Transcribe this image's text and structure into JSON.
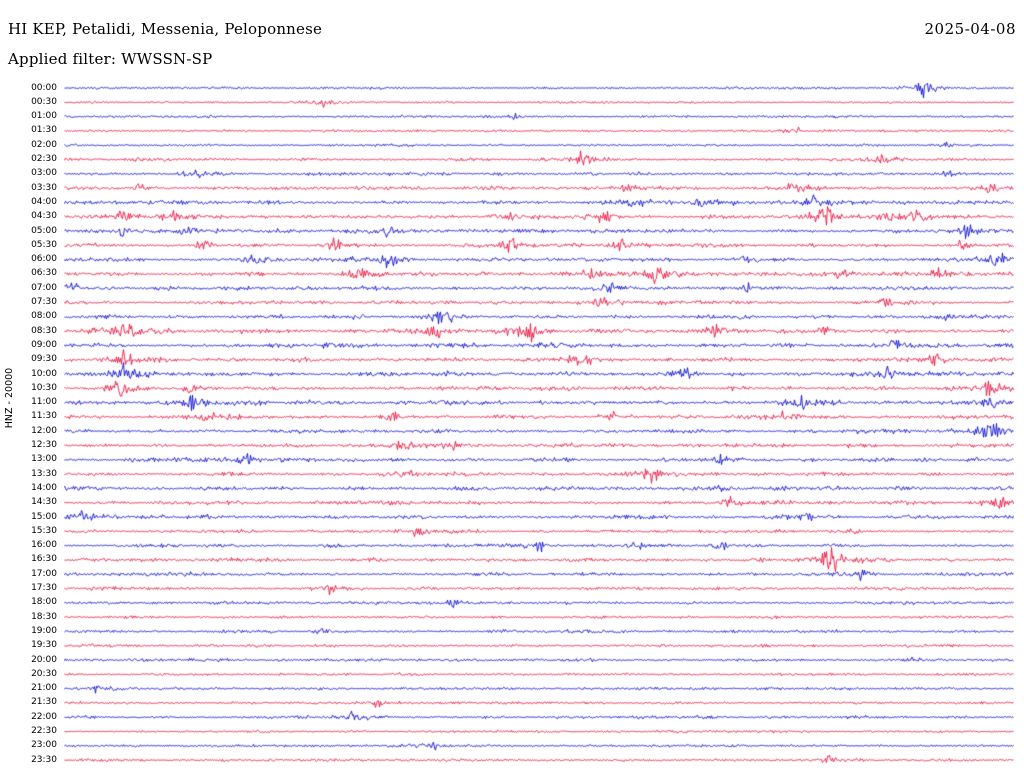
{
  "header": {
    "station_title": "HI KEP, Petalidi, Messenia, Peloponnese",
    "date": "2025-04-08",
    "filter_label": "Applied filter: WWSSN-SP"
  },
  "axis": {
    "left_label": "HNZ - 20000"
  },
  "chart_data": {
    "type": "line",
    "subtype": "helicorder-day-plot",
    "title": "HI KEP, Petalidi, Messenia, Peloponnese",
    "date": "2025-04-08",
    "filter": "WWSSN-SP",
    "channel_scale": "HNZ - 20000",
    "row_interval_minutes": 30,
    "legend": "rows alternate blue/red every 30 minutes",
    "colors": {
      "blue": "#0b0bd2",
      "red": "#e8123e"
    },
    "rows": [
      {
        "time": "00:00",
        "color": "blue",
        "act": 0.25,
        "ev": [
          [
            0.905,
            9
          ]
        ]
      },
      {
        "time": "00:30",
        "color": "red",
        "act": 0.22,
        "ev": [
          [
            0.275,
            5
          ]
        ]
      },
      {
        "time": "01:00",
        "color": "blue",
        "act": 0.22,
        "ev": [
          [
            0.475,
            3
          ]
        ]
      },
      {
        "time": "01:30",
        "color": "red",
        "act": 0.25,
        "ev": [
          [
            0.77,
            3
          ]
        ]
      },
      {
        "time": "02:00",
        "color": "blue",
        "act": 0.28,
        "ev": [
          [
            0.93,
            3
          ]
        ]
      },
      {
        "time": "02:30",
        "color": "red",
        "act": 0.4,
        "ev": [
          [
            0.545,
            7
          ],
          [
            0.86,
            6
          ]
        ]
      },
      {
        "time": "03:00",
        "color": "blue",
        "act": 0.45,
        "ev": [
          [
            0.135,
            6
          ],
          [
            0.93,
            4
          ]
        ]
      },
      {
        "time": "03:30",
        "color": "red",
        "act": 0.5,
        "ev": [
          [
            0.08,
            5
          ],
          [
            0.59,
            6
          ],
          [
            0.77,
            6
          ],
          [
            0.975,
            4
          ]
        ]
      },
      {
        "time": "04:00",
        "color": "blue",
        "act": 0.55,
        "ev": [
          [
            0.6,
            6
          ],
          [
            0.67,
            5
          ],
          [
            0.79,
            7
          ]
        ]
      },
      {
        "time": "04:30",
        "color": "red",
        "act": 0.65,
        "ev": [
          [
            0.06,
            5
          ],
          [
            0.12,
            6
          ],
          [
            0.47,
            5
          ],
          [
            0.57,
            7
          ],
          [
            0.8,
            10
          ],
          [
            0.87,
            7
          ],
          [
            0.9,
            6
          ]
        ]
      },
      {
        "time": "05:00",
        "color": "blue",
        "act": 0.6,
        "ev": [
          [
            0.06,
            5
          ],
          [
            0.13,
            5
          ],
          [
            0.34,
            6
          ],
          [
            0.95,
            5
          ]
        ]
      },
      {
        "time": "05:30",
        "color": "red",
        "act": 0.6,
        "ev": [
          [
            0.145,
            5
          ],
          [
            0.285,
            6
          ],
          [
            0.47,
            8
          ],
          [
            0.585,
            5
          ],
          [
            0.945,
            5
          ]
        ]
      },
      {
        "time": "06:00",
        "color": "blue",
        "act": 0.65,
        "ev": [
          [
            0.2,
            6
          ],
          [
            0.34,
            7
          ],
          [
            0.72,
            6
          ],
          [
            0.985,
            7
          ]
        ]
      },
      {
        "time": "06:30",
        "color": "red",
        "act": 0.6,
        "ev": [
          [
            0.31,
            7
          ],
          [
            0.555,
            5
          ],
          [
            0.625,
            8
          ],
          [
            0.815,
            6
          ],
          [
            0.92,
            5
          ]
        ]
      },
      {
        "time": "07:00",
        "color": "blue",
        "act": 0.55,
        "ev": [
          [
            0.01,
            6
          ],
          [
            0.575,
            6
          ],
          [
            0.72,
            5
          ]
        ]
      },
      {
        "time": "07:30",
        "color": "red",
        "act": 0.5,
        "ev": [
          [
            0.565,
            5
          ],
          [
            0.865,
            5
          ]
        ]
      },
      {
        "time": "08:00",
        "color": "blue",
        "act": 0.55,
        "ev": [
          [
            0.395,
            9
          ],
          [
            0.93,
            5
          ]
        ]
      },
      {
        "time": "08:30",
        "color": "red",
        "act": 0.65,
        "ev": [
          [
            0.065,
            10
          ],
          [
            0.39,
            7
          ],
          [
            0.485,
            10
          ],
          [
            0.685,
            7
          ],
          [
            0.8,
            6
          ]
        ]
      },
      {
        "time": "09:00",
        "color": "blue",
        "act": 0.75,
        "ev": [
          [
            0.875,
            6
          ]
        ]
      },
      {
        "time": "09:30",
        "color": "red",
        "act": 0.6,
        "ev": [
          [
            0.065,
            8
          ],
          [
            0.545,
            6
          ],
          [
            0.915,
            6
          ]
        ]
      },
      {
        "time": "10:00",
        "color": "blue",
        "act": 0.65,
        "ev": [
          [
            0.065,
            9
          ],
          [
            0.41,
            6
          ],
          [
            0.65,
            6
          ],
          [
            0.865,
            7
          ]
        ]
      },
      {
        "time": "10:30",
        "color": "red",
        "act": 0.6,
        "ev": [
          [
            0.06,
            9
          ],
          [
            0.135,
            6
          ],
          [
            0.975,
            9
          ]
        ]
      },
      {
        "time": "11:00",
        "color": "blue",
        "act": 0.72,
        "ev": [
          [
            0.135,
            7
          ],
          [
            0.775,
            6
          ],
          [
            0.975,
            6
          ]
        ]
      },
      {
        "time": "11:30",
        "color": "red",
        "act": 0.6,
        "ev": [
          [
            0.155,
            6
          ],
          [
            0.345,
            5
          ],
          [
            0.575,
            5
          ],
          [
            0.76,
            6
          ]
        ]
      },
      {
        "time": "12:00",
        "color": "blue",
        "act": 0.6,
        "ev": [
          [
            0.975,
            8
          ]
        ]
      },
      {
        "time": "12:30",
        "color": "red",
        "act": 0.6,
        "ev": [
          [
            0.355,
            8
          ],
          [
            0.41,
            6
          ]
        ]
      },
      {
        "time": "13:00",
        "color": "blue",
        "act": 0.72,
        "ev": [
          [
            0.195,
            6
          ],
          [
            0.69,
            5
          ]
        ]
      },
      {
        "time": "13:30",
        "color": "red",
        "act": 0.6,
        "ev": [
          [
            0.36,
            5
          ],
          [
            0.62,
            8
          ]
        ]
      },
      {
        "time": "14:00",
        "color": "blue",
        "act": 0.65,
        "ev": [
          [
            0.69,
            5
          ]
        ]
      },
      {
        "time": "14:30",
        "color": "red",
        "act": 0.6,
        "ev": [
          [
            0.7,
            5
          ],
          [
            0.985,
            8
          ]
        ]
      },
      {
        "time": "15:00",
        "color": "blue",
        "act": 0.6,
        "ev": [
          [
            0.02,
            8
          ],
          [
            0.78,
            6
          ]
        ]
      },
      {
        "time": "15:30",
        "color": "red",
        "act": 0.5,
        "ev": [
          [
            0.37,
            6
          ]
        ]
      },
      {
        "time": "16:00",
        "color": "blue",
        "act": 0.5,
        "ev": [
          [
            0.5,
            5
          ],
          [
            0.6,
            5
          ],
          [
            0.69,
            5
          ]
        ]
      },
      {
        "time": "16:30",
        "color": "red",
        "act": 0.55,
        "ev": [
          [
            0.805,
            12
          ]
        ]
      },
      {
        "time": "17:00",
        "color": "blue",
        "act": 0.5,
        "ev": [
          [
            0.84,
            5
          ]
        ]
      },
      {
        "time": "17:30",
        "color": "red",
        "act": 0.45,
        "ev": [
          [
            0.28,
            5
          ]
        ]
      },
      {
        "time": "18:00",
        "color": "blue",
        "act": 0.4,
        "ev": [
          [
            0.41,
            5
          ]
        ]
      },
      {
        "time": "18:30",
        "color": "red",
        "act": 0.4,
        "ev": []
      },
      {
        "time": "19:00",
        "color": "blue",
        "act": 0.45,
        "ev": [
          [
            0.27,
            4
          ]
        ]
      },
      {
        "time": "19:30",
        "color": "red",
        "act": 0.35,
        "ev": []
      },
      {
        "time": "20:00",
        "color": "blue",
        "act": 0.3,
        "ev": [
          [
            0.895,
            4
          ]
        ]
      },
      {
        "time": "20:30",
        "color": "red",
        "act": 0.3,
        "ev": []
      },
      {
        "time": "21:00",
        "color": "blue",
        "act": 0.3,
        "ev": [
          [
            0.035,
            4
          ]
        ]
      },
      {
        "time": "21:30",
        "color": "red",
        "act": 0.3,
        "ev": [
          [
            0.33,
            4
          ]
        ]
      },
      {
        "time": "22:00",
        "color": "blue",
        "act": 0.4,
        "ev": [
          [
            0.305,
            5
          ]
        ]
      },
      {
        "time": "22:30",
        "color": "red",
        "act": 0.28,
        "ev": []
      },
      {
        "time": "23:00",
        "color": "blue",
        "act": 0.28,
        "ev": [
          [
            0.385,
            5
          ]
        ]
      },
      {
        "time": "23:30",
        "color": "red",
        "act": 0.28,
        "ev": [
          [
            0.805,
            5
          ]
        ]
      }
    ]
  }
}
